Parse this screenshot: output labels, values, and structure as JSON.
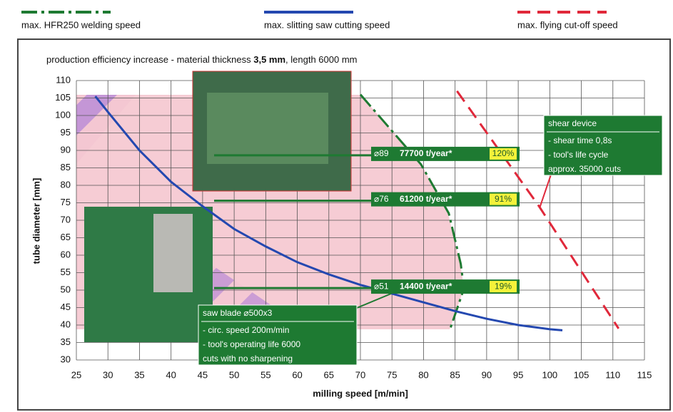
{
  "chart_data": {
    "type": "line",
    "title": [
      "production efficiency increase - material thickness ",
      "3,5 mm",
      ", length 6000 mm"
    ],
    "x_label": "milling speed [m/min]",
    "y_label": "tube diameter [mm]",
    "xlim": [
      25,
      115
    ],
    "ylim": [
      30,
      110
    ],
    "xticks": [
      25,
      30,
      35,
      40,
      45,
      50,
      55,
      60,
      65,
      70,
      75,
      80,
      85,
      90,
      95,
      100,
      105,
      110,
      115
    ],
    "yticks": [
      30,
      35,
      40,
      45,
      50,
      55,
      60,
      65,
      70,
      75,
      80,
      85,
      90,
      95,
      100,
      105,
      110
    ],
    "grid": true,
    "series": [
      {
        "name": "max. HFR250 welding speed",
        "color": "#1e7a32",
        "linestyle": "dash-dot",
        "x": [
          70,
          79.6,
          84,
          85.9,
          86.4,
          84.2
        ],
        "values": [
          106,
          86,
          72,
          57.5,
          50.4,
          38.8
        ]
      },
      {
        "name": "max. slitting saw cutting speed",
        "color": "#2448b0",
        "linestyle": "solid",
        "x": [
          28,
          30,
          35,
          40,
          45,
          50,
          55,
          60,
          65,
          70,
          75,
          80,
          85,
          90,
          95,
          100,
          102
        ],
        "values": [
          105.5,
          101,
          90,
          81,
          74,
          67.5,
          62.5,
          58,
          54.5,
          51.5,
          49,
          46.5,
          44,
          41.8,
          40,
          38.8,
          38.5
        ]
      },
      {
        "name": "max. flying cut-off speed",
        "color": "#e0283a",
        "linestyle": "dash",
        "x": [
          85.3,
          98.3,
          110.9
        ],
        "values": [
          107,
          74,
          39
        ]
      }
    ],
    "callouts": [
      {
        "diameter": "⌀89",
        "output": "77700 t/year*",
        "increase": "120%"
      },
      {
        "diameter": "⌀76",
        "output": "61200 t/year*",
        "increase": "91%"
      },
      {
        "diameter": "⌀51",
        "output": "14400 t/year*",
        "increase": "19%"
      }
    ],
    "shear_box": {
      "title": "shear device",
      "lines": [
        "- shear time 0,8s",
        "- tool's life cycle",
        "approx. 35000 cuts"
      ]
    },
    "saw_box": {
      "title": "saw blade ⌀500x3",
      "lines": [
        "- circ. speed 200m/min",
        "- tool's operating life 6000",
        "cuts with no sharpening"
      ]
    }
  }
}
